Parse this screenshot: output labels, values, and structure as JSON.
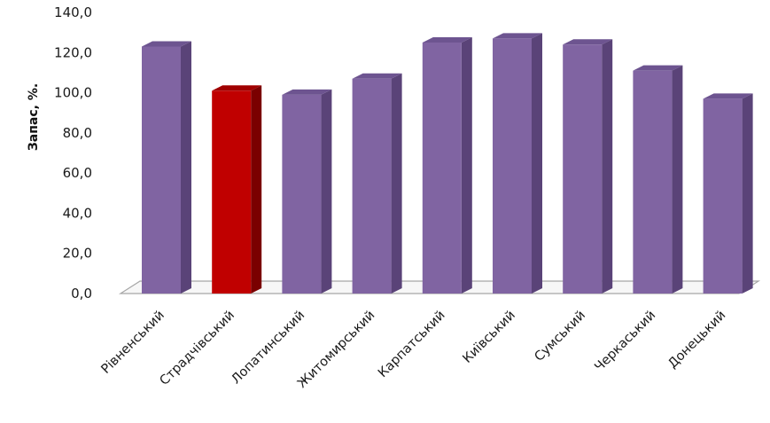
{
  "chart_data": {
    "type": "bar",
    "style": "3d-column",
    "title": "",
    "xlabel": "",
    "ylabel": "Запас, %.",
    "ylim": [
      0,
      140
    ],
    "ytick_step": 20,
    "ytick_labels": [
      "0,0",
      "20,0",
      "40,0",
      "60,0",
      "80,0",
      "100,0",
      "120,0",
      "140,0"
    ],
    "categories": [
      "Рівненський",
      "Страдчівський",
      "Лопатинський",
      "Житомирський",
      "Карпатський",
      "Київський",
      "Сумський",
      "Черкаський",
      "Донецький"
    ],
    "values": [
      123,
      101,
      99,
      107,
      125,
      127,
      124,
      111,
      97
    ],
    "highlight_index": 1,
    "colors": {
      "bar_front": "#8064a2",
      "bar_side": "#5a4378",
      "bar_top": "#6d5490",
      "highlight_front": "#c00000",
      "highlight_side": "#7a0000",
      "highlight_top": "#a00000",
      "floor_line": "#a6a6a6"
    },
    "grid": false,
    "legend": "none"
  }
}
